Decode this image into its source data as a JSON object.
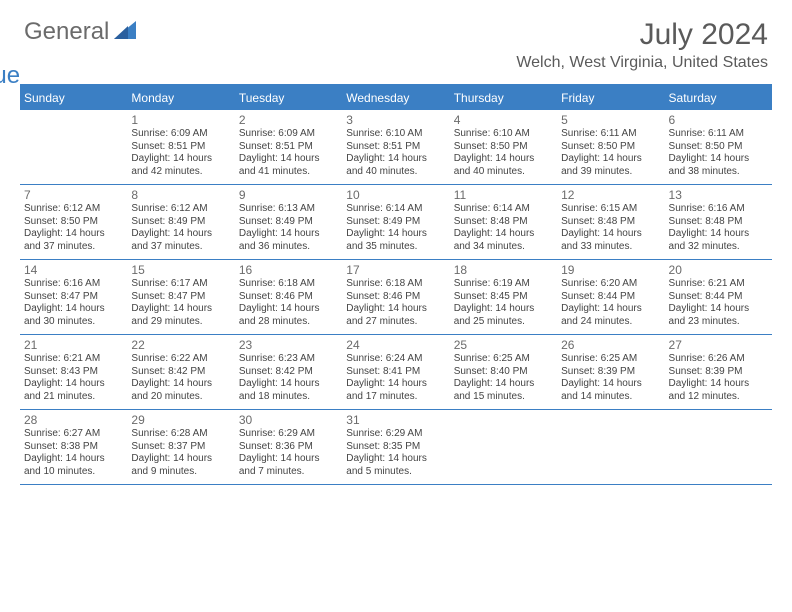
{
  "logo": {
    "text1": "General",
    "text2": "Blue"
  },
  "title": "July 2024",
  "location": "Welch, West Virginia, United States",
  "colors": {
    "accent": "#3b7fc4",
    "header_bg": "#3b7fc4",
    "header_text": "#ffffff",
    "text": "#444444",
    "muted": "#6b6b6b",
    "background": "#ffffff"
  },
  "typography": {
    "title_fontsize": 30,
    "location_fontsize": 16,
    "day_header_fontsize": 12,
    "daynum_fontsize": 12,
    "info_fontsize": 10,
    "logo_fontsize": 24
  },
  "day_headers": [
    "Sunday",
    "Monday",
    "Tuesday",
    "Wednesday",
    "Thursday",
    "Friday",
    "Saturday"
  ],
  "weeks": [
    [
      {
        "n": "",
        "sr": "",
        "ss": "",
        "dl": ""
      },
      {
        "n": "1",
        "sr": "Sunrise: 6:09 AM",
        "ss": "Sunset: 8:51 PM",
        "dl": "Daylight: 14 hours and 42 minutes."
      },
      {
        "n": "2",
        "sr": "Sunrise: 6:09 AM",
        "ss": "Sunset: 8:51 PM",
        "dl": "Daylight: 14 hours and 41 minutes."
      },
      {
        "n": "3",
        "sr": "Sunrise: 6:10 AM",
        "ss": "Sunset: 8:51 PM",
        "dl": "Daylight: 14 hours and 40 minutes."
      },
      {
        "n": "4",
        "sr": "Sunrise: 6:10 AM",
        "ss": "Sunset: 8:50 PM",
        "dl": "Daylight: 14 hours and 40 minutes."
      },
      {
        "n": "5",
        "sr": "Sunrise: 6:11 AM",
        "ss": "Sunset: 8:50 PM",
        "dl": "Daylight: 14 hours and 39 minutes."
      },
      {
        "n": "6",
        "sr": "Sunrise: 6:11 AM",
        "ss": "Sunset: 8:50 PM",
        "dl": "Daylight: 14 hours and 38 minutes."
      }
    ],
    [
      {
        "n": "7",
        "sr": "Sunrise: 6:12 AM",
        "ss": "Sunset: 8:50 PM",
        "dl": "Daylight: 14 hours and 37 minutes."
      },
      {
        "n": "8",
        "sr": "Sunrise: 6:12 AM",
        "ss": "Sunset: 8:49 PM",
        "dl": "Daylight: 14 hours and 37 minutes."
      },
      {
        "n": "9",
        "sr": "Sunrise: 6:13 AM",
        "ss": "Sunset: 8:49 PM",
        "dl": "Daylight: 14 hours and 36 minutes."
      },
      {
        "n": "10",
        "sr": "Sunrise: 6:14 AM",
        "ss": "Sunset: 8:49 PM",
        "dl": "Daylight: 14 hours and 35 minutes."
      },
      {
        "n": "11",
        "sr": "Sunrise: 6:14 AM",
        "ss": "Sunset: 8:48 PM",
        "dl": "Daylight: 14 hours and 34 minutes."
      },
      {
        "n": "12",
        "sr": "Sunrise: 6:15 AM",
        "ss": "Sunset: 8:48 PM",
        "dl": "Daylight: 14 hours and 33 minutes."
      },
      {
        "n": "13",
        "sr": "Sunrise: 6:16 AM",
        "ss": "Sunset: 8:48 PM",
        "dl": "Daylight: 14 hours and 32 minutes."
      }
    ],
    [
      {
        "n": "14",
        "sr": "Sunrise: 6:16 AM",
        "ss": "Sunset: 8:47 PM",
        "dl": "Daylight: 14 hours and 30 minutes."
      },
      {
        "n": "15",
        "sr": "Sunrise: 6:17 AM",
        "ss": "Sunset: 8:47 PM",
        "dl": "Daylight: 14 hours and 29 minutes."
      },
      {
        "n": "16",
        "sr": "Sunrise: 6:18 AM",
        "ss": "Sunset: 8:46 PM",
        "dl": "Daylight: 14 hours and 28 minutes."
      },
      {
        "n": "17",
        "sr": "Sunrise: 6:18 AM",
        "ss": "Sunset: 8:46 PM",
        "dl": "Daylight: 14 hours and 27 minutes."
      },
      {
        "n": "18",
        "sr": "Sunrise: 6:19 AM",
        "ss": "Sunset: 8:45 PM",
        "dl": "Daylight: 14 hours and 25 minutes."
      },
      {
        "n": "19",
        "sr": "Sunrise: 6:20 AM",
        "ss": "Sunset: 8:44 PM",
        "dl": "Daylight: 14 hours and 24 minutes."
      },
      {
        "n": "20",
        "sr": "Sunrise: 6:21 AM",
        "ss": "Sunset: 8:44 PM",
        "dl": "Daylight: 14 hours and 23 minutes."
      }
    ],
    [
      {
        "n": "21",
        "sr": "Sunrise: 6:21 AM",
        "ss": "Sunset: 8:43 PM",
        "dl": "Daylight: 14 hours and 21 minutes."
      },
      {
        "n": "22",
        "sr": "Sunrise: 6:22 AM",
        "ss": "Sunset: 8:42 PM",
        "dl": "Daylight: 14 hours and 20 minutes."
      },
      {
        "n": "23",
        "sr": "Sunrise: 6:23 AM",
        "ss": "Sunset: 8:42 PM",
        "dl": "Daylight: 14 hours and 18 minutes."
      },
      {
        "n": "24",
        "sr": "Sunrise: 6:24 AM",
        "ss": "Sunset: 8:41 PM",
        "dl": "Daylight: 14 hours and 17 minutes."
      },
      {
        "n": "25",
        "sr": "Sunrise: 6:25 AM",
        "ss": "Sunset: 8:40 PM",
        "dl": "Daylight: 14 hours and 15 minutes."
      },
      {
        "n": "26",
        "sr": "Sunrise: 6:25 AM",
        "ss": "Sunset: 8:39 PM",
        "dl": "Daylight: 14 hours and 14 minutes."
      },
      {
        "n": "27",
        "sr": "Sunrise: 6:26 AM",
        "ss": "Sunset: 8:39 PM",
        "dl": "Daylight: 14 hours and 12 minutes."
      }
    ],
    [
      {
        "n": "28",
        "sr": "Sunrise: 6:27 AM",
        "ss": "Sunset: 8:38 PM",
        "dl": "Daylight: 14 hours and 10 minutes."
      },
      {
        "n": "29",
        "sr": "Sunrise: 6:28 AM",
        "ss": "Sunset: 8:37 PM",
        "dl": "Daylight: 14 hours and 9 minutes."
      },
      {
        "n": "30",
        "sr": "Sunrise: 6:29 AM",
        "ss": "Sunset: 8:36 PM",
        "dl": "Daylight: 14 hours and 7 minutes."
      },
      {
        "n": "31",
        "sr": "Sunrise: 6:29 AM",
        "ss": "Sunset: 8:35 PM",
        "dl": "Daylight: 14 hours and 5 minutes."
      },
      {
        "n": "",
        "sr": "",
        "ss": "",
        "dl": ""
      },
      {
        "n": "",
        "sr": "",
        "ss": "",
        "dl": ""
      },
      {
        "n": "",
        "sr": "",
        "ss": "",
        "dl": ""
      }
    ]
  ]
}
